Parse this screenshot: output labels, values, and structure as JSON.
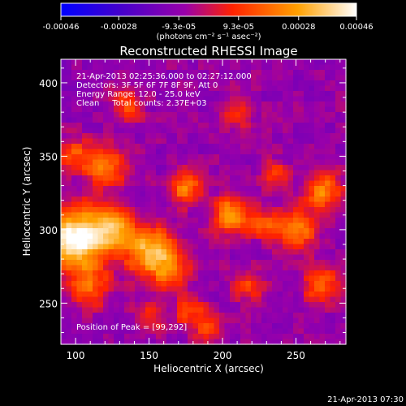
{
  "chart_data": {
    "type": "heatmap",
    "title": "Reconstructed RHESSI Image",
    "xlabel": "Heliocentric X (arcsec)",
    "ylabel": "Heliocentric Y (arcsec)",
    "xlim": [
      90,
      284
    ],
    "ylim": [
      222,
      416
    ],
    "x_ticks": [
      100,
      150,
      200,
      250
    ],
    "y_ticks": [
      250,
      300,
      350,
      400
    ],
    "colorbar": {
      "range": [
        -0.00046,
        0.00046
      ],
      "tick_values": [
        -0.00046,
        -0.00028,
        -9.3e-05,
        9.3e-05,
        0.00028,
        0.00046
      ],
      "tick_labels": [
        "-0.00046",
        "-0.00028",
        "-9.3e-05",
        "9.3e-05",
        "0.00028",
        "0.00046"
      ],
      "unit_label": "(photons cm⁻² s⁻¹ asec⁻²)",
      "colors": [
        "#0000ff",
        "#4400cc",
        "#9900aa",
        "#ff2200",
        "#ffa000",
        "#ffffff"
      ]
    },
    "annotations": [
      "21-Apr-2013 02:25:36.000 to 02:27:12.000",
      "Detectors: 3F 5F 6F 7F 8F 9F, Att 0",
      "Energy Range: 12.0 - 25.0 keV",
      "Clean     Total counts: 2.37E+03"
    ],
    "peak_label": "Position of Peak = [99,292]",
    "peak": {
      "x": 99,
      "y": 292
    },
    "timestamp": "21-Apr-2013 07:30",
    "sources": [
      {
        "x": 100,
        "y": 294,
        "amp": 1.0,
        "sigma": 14
      },
      {
        "x": 125,
        "y": 302,
        "amp": 0.6,
        "sigma": 10
      },
      {
        "x": 150,
        "y": 286,
        "amp": 0.72,
        "sigma": 12
      },
      {
        "x": 165,
        "y": 272,
        "amp": 0.45,
        "sigma": 9
      },
      {
        "x": 110,
        "y": 262,
        "amp": 0.45,
        "sigma": 10
      },
      {
        "x": 120,
        "y": 344,
        "amp": 0.55,
        "sigma": 10
      },
      {
        "x": 98,
        "y": 352,
        "amp": 0.35,
        "sigma": 8
      },
      {
        "x": 135,
        "y": 384,
        "amp": 0.35,
        "sigma": 8
      },
      {
        "x": 175,
        "y": 328,
        "amp": 0.55,
        "sigma": 8
      },
      {
        "x": 206,
        "y": 310,
        "amp": 0.62,
        "sigma": 9
      },
      {
        "x": 230,
        "y": 304,
        "amp": 0.4,
        "sigma": 8
      },
      {
        "x": 252,
        "y": 300,
        "amp": 0.55,
        "sigma": 9
      },
      {
        "x": 268,
        "y": 326,
        "amp": 0.58,
        "sigma": 9
      },
      {
        "x": 236,
        "y": 338,
        "amp": 0.35,
        "sigma": 7
      },
      {
        "x": 268,
        "y": 262,
        "amp": 0.45,
        "sigma": 9
      },
      {
        "x": 218,
        "y": 262,
        "amp": 0.35,
        "sigma": 8
      },
      {
        "x": 178,
        "y": 244,
        "amp": 0.35,
        "sigma": 8
      },
      {
        "x": 210,
        "y": 380,
        "amp": 0.3,
        "sigma": 8
      },
      {
        "x": 190,
        "y": 232,
        "amp": 0.3,
        "sigma": 7
      },
      {
        "x": 150,
        "y": 240,
        "amp": 0.3,
        "sigma": 8
      }
    ]
  }
}
